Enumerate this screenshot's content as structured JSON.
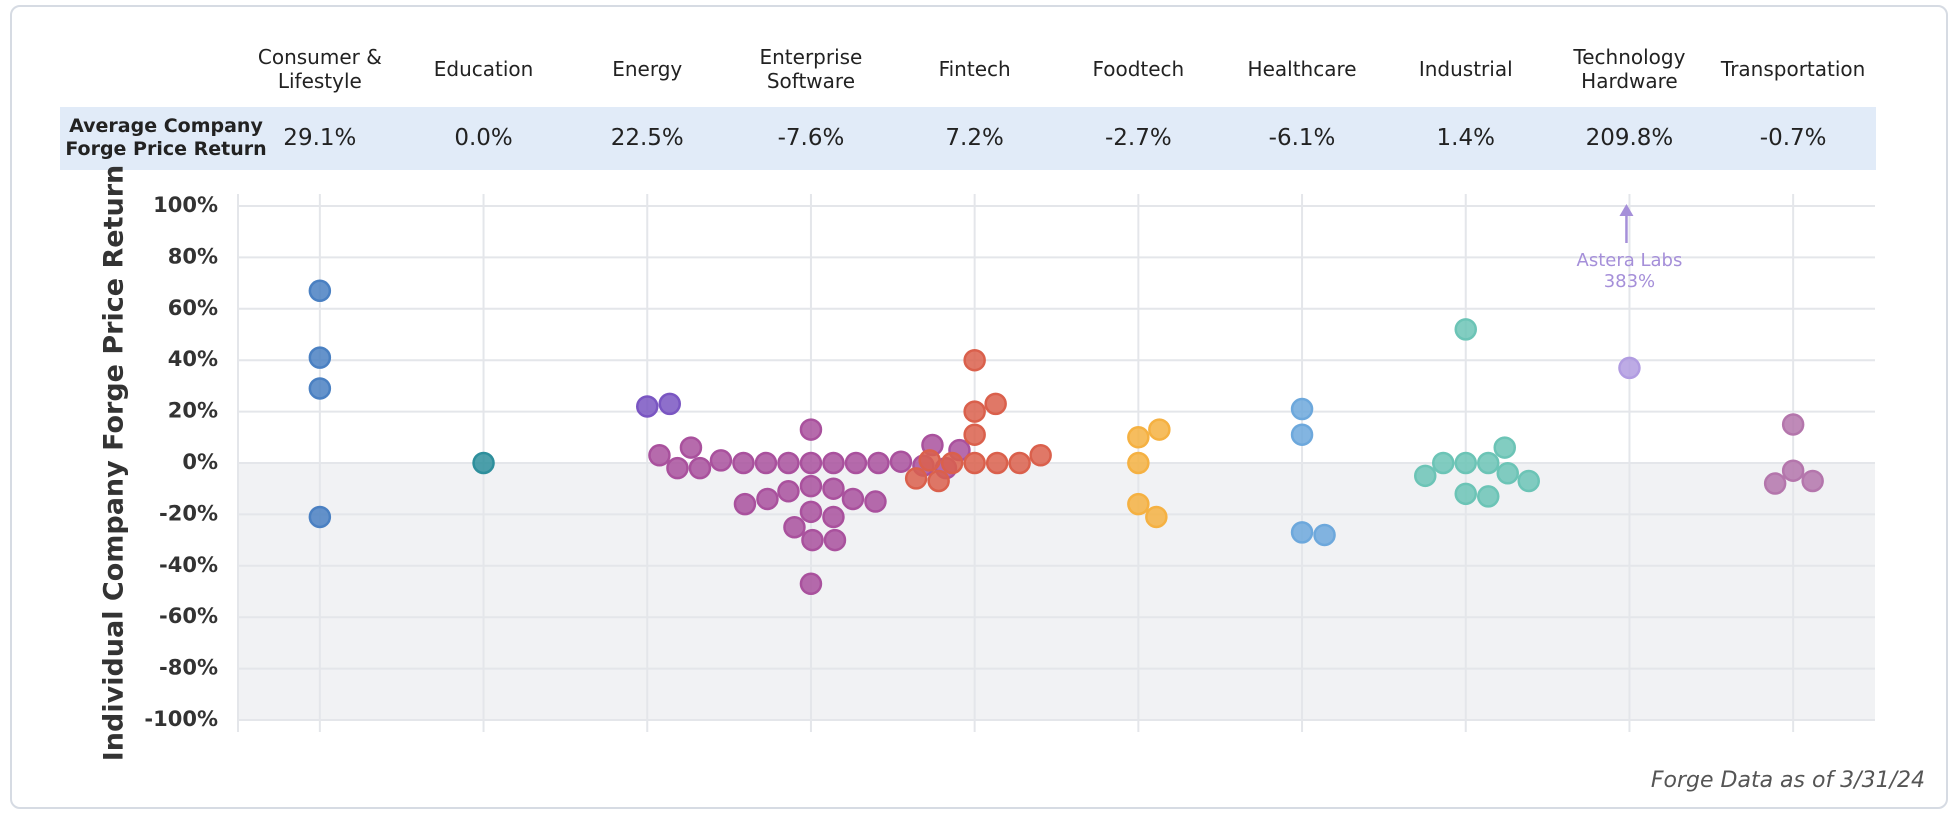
{
  "chart_data": {
    "type": "strip",
    "ylabel": "Individual Company Forge Price Return",
    "source": "Forge Data as of 3/31/24",
    "averages": {
      "label": "Average Company Forge Price Return",
      "values": [
        29.1,
        0.0,
        22.5,
        -7.6,
        7.2,
        -2.7,
        -6.1,
        1.4,
        209.8,
        -0.7
      ],
      "value_labels": [
        "29.1%",
        "0.0%",
        "22.5%",
        "-7.6%",
        "7.2%",
        "-2.7%",
        "-6.1%",
        "1.4%",
        "209.8%",
        "-0.7%"
      ]
    },
    "series": [
      {
        "name": "Consumer & Lifestyle",
        "color": "#4a80c2",
        "values": [
          67,
          41,
          29,
          -21
        ]
      },
      {
        "name": "Education",
        "color": "#2e8f9c",
        "values": [
          0
        ]
      },
      {
        "name": "Energy",
        "color": "#7a56c2",
        "values": [
          22,
          23
        ]
      },
      {
        "name": "Enterprise Software",
        "color": "#a9519d",
        "values": [
          0,
          -2,
          0,
          1,
          3,
          0,
          7,
          13,
          0,
          6,
          0,
          -2,
          5,
          0,
          0.5,
          -1,
          0,
          -2,
          -15,
          -14,
          -10,
          -9,
          -11,
          -14,
          -16,
          -21,
          -19,
          -25,
          -30,
          -30,
          -47
        ]
      },
      {
        "name": "Fintech",
        "color": "#da604c",
        "values": [
          40,
          20,
          23,
          11,
          0,
          1,
          3,
          0,
          0,
          0,
          -7,
          -6
        ]
      },
      {
        "name": "Foodtech",
        "color": "#f5b142",
        "values": [
          10,
          13,
          0,
          -16,
          -21
        ]
      },
      {
        "name": "Healthcare",
        "color": "#6da8dc",
        "values": [
          21,
          11,
          -28,
          -27
        ]
      },
      {
        "name": "Industrial",
        "color": "#6cc4b6",
        "values": [
          52,
          -4,
          0,
          6,
          0,
          0,
          -5,
          -7,
          -12,
          -13
        ]
      },
      {
        "name": "Technology Hardware",
        "color": "#b19ce1",
        "values": [
          37
        ],
        "annotation": {
          "text": "Astera Labs",
          "value": 383,
          "label": "383%"
        }
      },
      {
        "name": "Transportation",
        "color": "#b476ac",
        "values": [
          15,
          -7,
          -3,
          -8
        ]
      }
    ],
    "ylim": [
      -100,
      100
    ],
    "yticks": [
      {
        "value": 100,
        "label": "100%"
      },
      {
        "value": 80,
        "label": "80%"
      },
      {
        "value": 60,
        "label": "60%"
      },
      {
        "value": 40,
        "label": "40%"
      },
      {
        "value": 20,
        "label": "20%"
      },
      {
        "value": 0,
        "label": "0%"
      },
      {
        "value": -20,
        "label": "-20%"
      },
      {
        "value": -40,
        "label": "-40%"
      },
      {
        "value": -60,
        "label": "-60%"
      },
      {
        "value": -80,
        "label": "-80%"
      },
      {
        "value": -100,
        "label": "-100%"
      }
    ],
    "grid": true
  }
}
